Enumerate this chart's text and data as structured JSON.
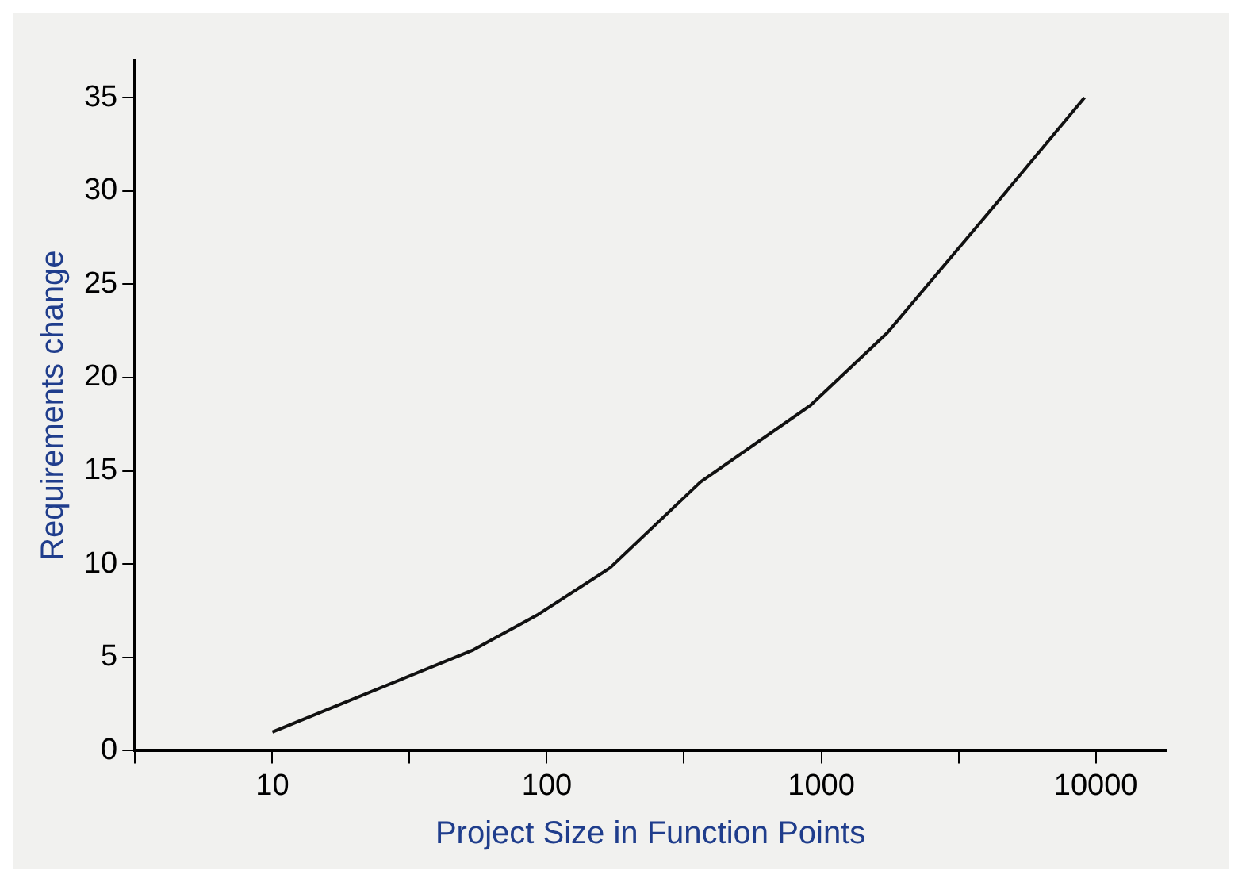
{
  "chart_data": {
    "type": "line",
    "xlabel": "Project Size in Function Points",
    "ylabel": "Requirements change",
    "log": "x",
    "xlim": [
      3.16,
      18000
    ],
    "xticks": [
      {
        "value": 3.16,
        "label": null
      },
      10,
      {
        "value": 31.6,
        "label": null
      },
      100,
      {
        "value": 316,
        "label": null
      },
      1000,
      {
        "value": 3162,
        "label": null
      },
      10000
    ],
    "ylim": [
      0,
      37
    ],
    "yticks": [
      0,
      5,
      10,
      15,
      20,
      25,
      30,
      35
    ],
    "marker": "none",
    "series": [
      {
        "color": "#111111",
        "x": [
          10,
          54,
          93,
          170,
          363,
          912,
          1740,
          4270,
          9100
        ],
        "values": [
          1.0,
          5.4,
          7.3,
          9.8,
          14.4,
          18.5,
          22.4,
          29.2,
          35
        ]
      }
    ]
  }
}
